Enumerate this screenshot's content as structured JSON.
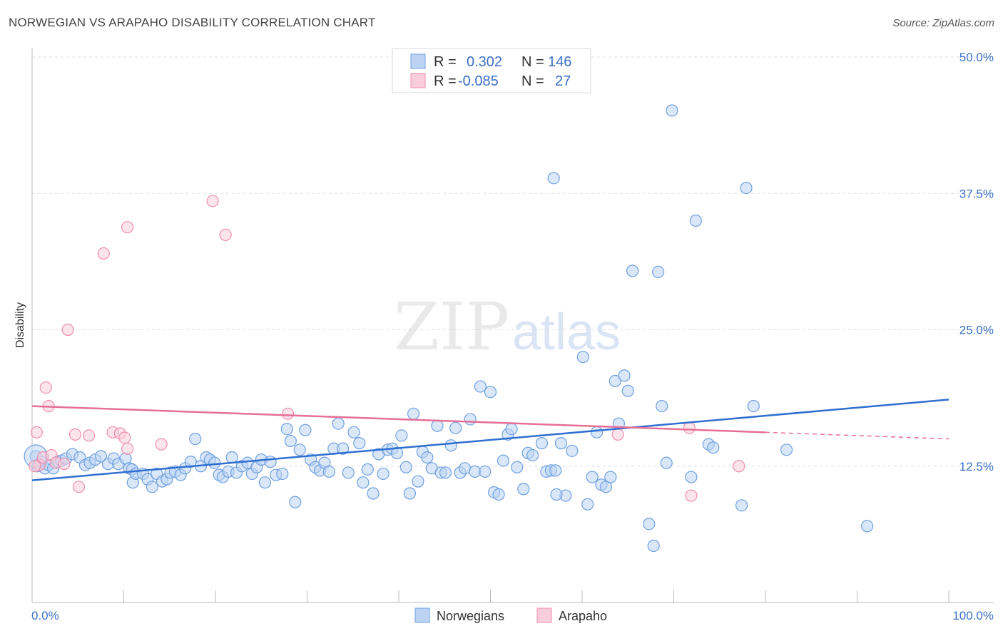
{
  "header": {
    "title": "NORWEGIAN VS ARAPAHO DISABILITY CORRELATION CHART",
    "source": "Source: ZipAtlas.com"
  },
  "watermark": {
    "zip": "ZIP",
    "atlas": "atlas"
  },
  "legend_top": {
    "rows": [
      {
        "r_label": "R =",
        "r_value": "0.302",
        "n_label": "N =",
        "n_value": "146",
        "color": "#6fa0e0"
      },
      {
        "r_label": "R =",
        "r_value": "-0.085",
        "n_label": "N =",
        "n_value": "27",
        "color": "#ef8fae"
      }
    ]
  },
  "chart_data": {
    "type": "scatter",
    "title": "NORWEGIAN VS ARAPAHO DISABILITY CORRELATION CHART",
    "xlabel": "",
    "ylabel": "Disability",
    "xlim": [
      0,
      100
    ],
    "ylim": [
      0,
      50
    ],
    "x_tick_labels": [
      "0.0%",
      "100.0%"
    ],
    "y_ticks": [
      12.5,
      25.0,
      37.5,
      50.0
    ],
    "y_tick_labels": [
      "12.5%",
      "25.0%",
      "37.5%",
      "50.0%"
    ],
    "grid": true,
    "legend_position": "bottom",
    "series": [
      {
        "name": "Norwegians",
        "color": "#6fa0e0",
        "trend": {
          "x": [
            0,
            100
          ],
          "y": [
            11.2,
            18.6
          ]
        },
        "points": [
          [
            0.4,
            13.4
          ],
          [
            0.6,
            12.5
          ],
          [
            1.0,
            12.9
          ],
          [
            1.4,
            12.3
          ],
          [
            1.8,
            12.6
          ],
          [
            2.3,
            12.3
          ],
          [
            2.8,
            12.9
          ],
          [
            3.2,
            13.0
          ],
          [
            3.7,
            13.2
          ],
          [
            4.4,
            13.6
          ],
          [
            5.2,
            13.3
          ],
          [
            5.8,
            12.6
          ],
          [
            6.3,
            12.8
          ],
          [
            6.9,
            13.1
          ],
          [
            7.5,
            13.4
          ],
          [
            8.3,
            12.7
          ],
          [
            8.9,
            13.2
          ],
          [
            9.4,
            12.7
          ],
          [
            10.2,
            13.2
          ],
          [
            10.6,
            12.3
          ],
          [
            10.9,
            12.2
          ],
          [
            11.0,
            11.0
          ],
          [
            11.3,
            11.8
          ],
          [
            12.1,
            11.8
          ],
          [
            12.6,
            11.3
          ],
          [
            13.1,
            10.6
          ],
          [
            13.6,
            11.8
          ],
          [
            14.2,
            11.1
          ],
          [
            14.7,
            11.3
          ],
          [
            15.1,
            11.9
          ],
          [
            15.6,
            12.0
          ],
          [
            16.2,
            11.7
          ],
          [
            16.7,
            12.3
          ],
          [
            17.3,
            12.9
          ],
          [
            17.8,
            15.0
          ],
          [
            18.4,
            12.5
          ],
          [
            19.0,
            13.3
          ],
          [
            19.4,
            13.1
          ],
          [
            19.9,
            12.8
          ],
          [
            20.4,
            11.7
          ],
          [
            20.8,
            11.5
          ],
          [
            21.4,
            12.0
          ],
          [
            21.8,
            13.3
          ],
          [
            22.3,
            11.9
          ],
          [
            22.9,
            12.5
          ],
          [
            23.5,
            12.8
          ],
          [
            24.0,
            11.8
          ],
          [
            24.5,
            12.4
          ],
          [
            25.0,
            13.1
          ],
          [
            25.4,
            11.0
          ],
          [
            26.0,
            12.9
          ],
          [
            26.6,
            11.7
          ],
          [
            27.3,
            11.8
          ],
          [
            27.8,
            15.9
          ],
          [
            28.2,
            14.8
          ],
          [
            28.7,
            9.2
          ],
          [
            29.2,
            14.0
          ],
          [
            29.8,
            15.8
          ],
          [
            30.4,
            13.1
          ],
          [
            30.9,
            12.4
          ],
          [
            31.4,
            12.1
          ],
          [
            31.9,
            12.8
          ],
          [
            32.4,
            12.0
          ],
          [
            32.9,
            14.1
          ],
          [
            33.4,
            16.4
          ],
          [
            33.9,
            14.1
          ],
          [
            34.5,
            11.9
          ],
          [
            35.1,
            15.6
          ],
          [
            35.7,
            14.6
          ],
          [
            36.1,
            11.0
          ],
          [
            36.6,
            12.2
          ],
          [
            37.2,
            10.0
          ],
          [
            37.8,
            13.6
          ],
          [
            38.3,
            11.8
          ],
          [
            38.8,
            14.0
          ],
          [
            39.3,
            14.1
          ],
          [
            39.8,
            13.7
          ],
          [
            40.3,
            15.3
          ],
          [
            40.8,
            12.4
          ],
          [
            41.2,
            10.0
          ],
          [
            41.6,
            17.3
          ],
          [
            42.1,
            11.1
          ],
          [
            42.6,
            13.8
          ],
          [
            43.1,
            13.3
          ],
          [
            43.6,
            12.3
          ],
          [
            44.2,
            16.2
          ],
          [
            44.6,
            11.9
          ],
          [
            45.1,
            11.9
          ],
          [
            45.7,
            14.4
          ],
          [
            46.2,
            16.0
          ],
          [
            46.7,
            11.9
          ],
          [
            47.2,
            12.3
          ],
          [
            47.8,
            16.8
          ],
          [
            48.3,
            12.0
          ],
          [
            48.9,
            19.8
          ],
          [
            49.4,
            12.0
          ],
          [
            50.0,
            19.3
          ],
          [
            50.4,
            10.1
          ],
          [
            50.9,
            9.9
          ],
          [
            51.4,
            13.0
          ],
          [
            51.9,
            15.4
          ],
          [
            52.3,
            15.9
          ],
          [
            52.9,
            12.4
          ],
          [
            53.6,
            10.4
          ],
          [
            54.1,
            13.7
          ],
          [
            54.6,
            13.5
          ],
          [
            55.6,
            14.6
          ],
          [
            56.1,
            12.0
          ],
          [
            56.6,
            12.1
          ],
          [
            57.1,
            12.1
          ],
          [
            57.7,
            14.6
          ],
          [
            58.2,
            9.8
          ],
          [
            58.9,
            13.9
          ],
          [
            60.1,
            22.5
          ],
          [
            60.6,
            9.0
          ],
          [
            61.1,
            11.5
          ],
          [
            61.6,
            15.6
          ],
          [
            62.1,
            10.8
          ],
          [
            62.6,
            10.6
          ],
          [
            63.1,
            11.5
          ],
          [
            63.6,
            20.3
          ],
          [
            64.0,
            16.4
          ],
          [
            64.6,
            20.8
          ],
          [
            65.0,
            19.4
          ],
          [
            65.5,
            30.4
          ],
          [
            67.3,
            7.2
          ],
          [
            67.8,
            5.2
          ],
          [
            68.3,
            30.3
          ],
          [
            68.7,
            18.0
          ],
          [
            69.2,
            12.8
          ],
          [
            69.8,
            45.1
          ],
          [
            71.9,
            11.5
          ],
          [
            72.4,
            35.0
          ],
          [
            73.8,
            14.5
          ],
          [
            74.3,
            14.2
          ],
          [
            77.4,
            8.9
          ],
          [
            77.9,
            38.0
          ],
          [
            78.7,
            18.0
          ],
          [
            82.3,
            14.0
          ],
          [
            91.1,
            7.0
          ],
          [
            56.9,
            38.9
          ],
          [
            57.2,
            9.9
          ]
        ]
      },
      {
        "name": "Arapaho",
        "color": "#ef8fae",
        "trend": {
          "x": [
            0,
            80
          ],
          "y": [
            18.0,
            15.6
          ],
          "dashed_to": [
            100,
            15.0
          ]
        },
        "points": [
          [
            0.5,
            15.6
          ],
          [
            0.8,
            12.6
          ],
          [
            1.2,
            13.3
          ],
          [
            1.5,
            19.7
          ],
          [
            1.8,
            18.0
          ],
          [
            2.1,
            13.5
          ],
          [
            2.6,
            12.8
          ],
          [
            3.5,
            12.7
          ],
          [
            3.9,
            25.0
          ],
          [
            4.7,
            15.4
          ],
          [
            5.1,
            10.6
          ],
          [
            6.2,
            15.3
          ],
          [
            7.8,
            32.0
          ],
          [
            8.8,
            15.6
          ],
          [
            9.6,
            15.5
          ],
          [
            10.1,
            15.1
          ],
          [
            10.4,
            34.4
          ],
          [
            10.4,
            14.1
          ],
          [
            14.1,
            14.5
          ],
          [
            19.7,
            36.8
          ],
          [
            21.1,
            33.7
          ],
          [
            27.9,
            17.3
          ],
          [
            63.9,
            15.4
          ],
          [
            71.7,
            16.0
          ],
          [
            71.9,
            9.8
          ],
          [
            77.1,
            12.5
          ],
          [
            0.3,
            12.5
          ]
        ]
      }
    ]
  }
}
